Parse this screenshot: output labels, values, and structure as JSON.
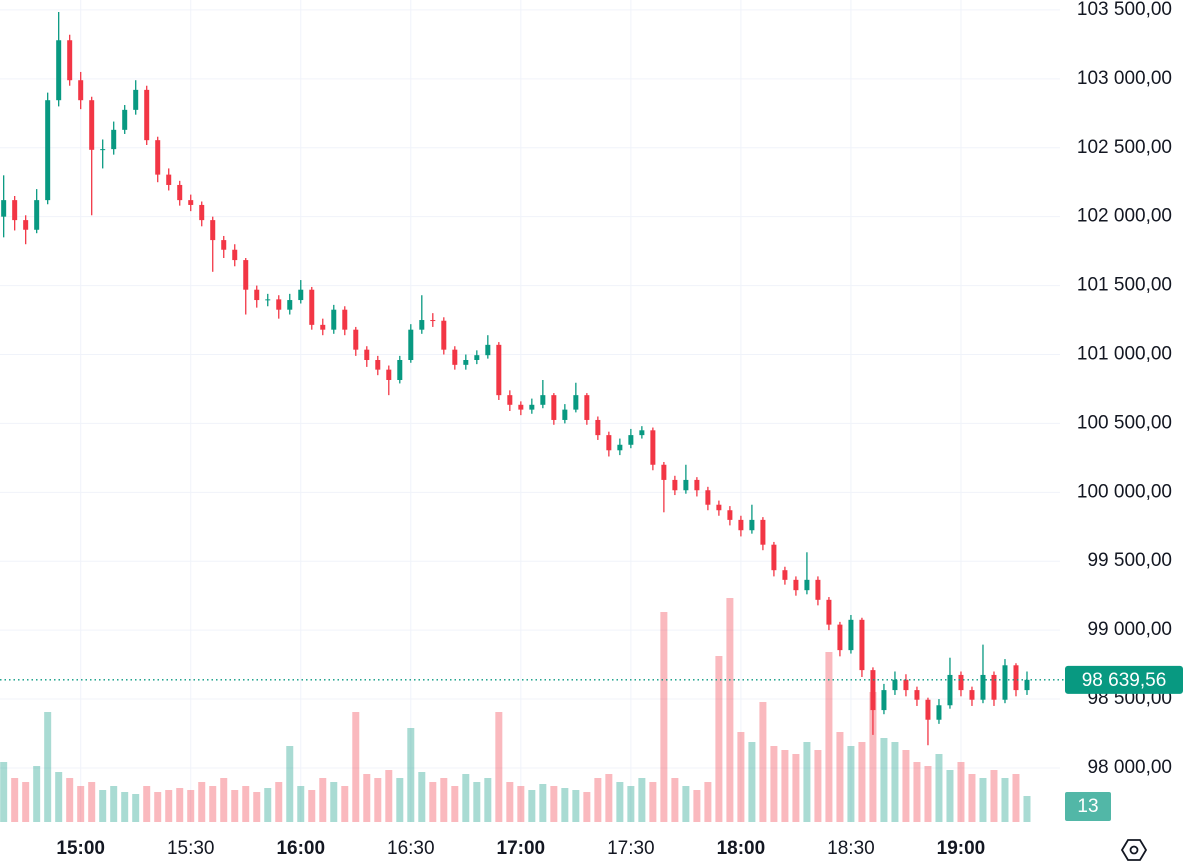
{
  "chart_data": {
    "type": "candlestick",
    "x": [
      "14:39",
      "14:42",
      "14:45",
      "14:48",
      "14:51",
      "14:54",
      "14:57",
      "15:00",
      "15:03",
      "15:06",
      "15:09",
      "15:12",
      "15:15",
      "15:18",
      "15:21",
      "15:24",
      "15:27",
      "15:30",
      "15:33",
      "15:36",
      "15:39",
      "15:42",
      "15:45",
      "15:48",
      "15:51",
      "15:54",
      "15:57",
      "16:00",
      "16:03",
      "16:06",
      "16:09",
      "16:12",
      "16:15",
      "16:18",
      "16:21",
      "16:24",
      "16:27",
      "16:30",
      "16:33",
      "16:36",
      "16:39",
      "16:42",
      "16:45",
      "16:48",
      "16:51",
      "16:54",
      "16:57",
      "17:00",
      "17:03",
      "17:06",
      "17:09",
      "17:12",
      "17:15",
      "17:18",
      "17:21",
      "17:24",
      "17:27",
      "17:30",
      "17:33",
      "17:36",
      "17:39",
      "17:42",
      "17:45",
      "17:48",
      "17:51",
      "17:54",
      "17:57",
      "18:00",
      "18:03",
      "18:06",
      "18:09",
      "18:12",
      "18:15",
      "18:18",
      "18:21",
      "18:24",
      "18:27",
      "18:30",
      "18:33",
      "18:36",
      "18:39",
      "18:42",
      "18:45",
      "18:48",
      "18:51",
      "18:54",
      "18:57",
      "19:00",
      "19:03",
      "19:06",
      "19:09",
      "19:12",
      "19:15",
      "19:18"
    ],
    "open": [
      102000,
      102120,
      101975,
      101905,
      102120,
      102845,
      103280,
      102990,
      102845,
      102485,
      102490,
      102630,
      102775,
      102920,
      102555,
      102305,
      102230,
      102120,
      102085,
      101975,
      101830,
      101760,
      101685,
      101470,
      101395,
      101400,
      101325,
      101395,
      101470,
      101215,
      101180,
      101325,
      101180,
      101035,
      100960,
      100890,
      100815,
      100960,
      101180,
      101250,
      101245,
      101035,
      100925,
      100960,
      100995,
      101070,
      100705,
      100635,
      100600,
      100635,
      100705,
      100525,
      100600,
      100705,
      100525,
      100415,
      100305,
      100345,
      100415,
      100450,
      100200,
      100090,
      100015,
      100090,
      100015,
      99910,
      99870,
      99800,
      99725,
      99800,
      99620,
      99435,
      99365,
      99290,
      99365,
      99220,
      99040,
      98855,
      99075,
      98710,
      98420,
      98565,
      98640,
      98565,
      98495,
      98350,
      98455,
      98675,
      98565,
      98495,
      98675,
      98495,
      98745,
      98565
    ],
    "high": [
      102300,
      102150,
      102010,
      102200,
      102900,
      103485,
      103320,
      103050,
      102870,
      102560,
      102690,
      102810,
      102990,
      102950,
      102580,
      102350,
      102260,
      102160,
      102110,
      102000,
      101860,
      101800,
      101700,
      101500,
      101440,
      101430,
      101440,
      101540,
      101490,
      101260,
      101360,
      101350,
      101200,
      101060,
      100990,
      100920,
      100990,
      101220,
      101430,
      101300,
      101270,
      101060,
      101000,
      101030,
      101140,
      101090,
      100740,
      100660,
      100680,
      100815,
      100720,
      100640,
      100795,
      100720,
      100550,
      100440,
      100390,
      100460,
      100480,
      100470,
      100220,
      100120,
      100200,
      100110,
      100040,
      99940,
      99900,
      99830,
      99910,
      99820,
      99640,
      99460,
      99390,
      99565,
      99390,
      99240,
      99060,
      99110,
      99090,
      98730,
      98610,
      98700,
      98680,
      98590,
      98510,
      98500,
      98800,
      98700,
      98590,
      98895,
      98700,
      98790,
      98760,
      98700
    ],
    "low": [
      101850,
      101900,
      101800,
      101880,
      102090,
      102800,
      102950,
      102780,
      102010,
      102350,
      102450,
      102600,
      102740,
      102520,
      102250,
      102190,
      102080,
      102040,
      101930,
      101600,
      101700,
      101640,
      101290,
      101340,
      101350,
      101260,
      101290,
      101370,
      101180,
      101140,
      101150,
      101140,
      100990,
      100910,
      100850,
      100705,
      100790,
      100940,
      101150,
      101200,
      101000,
      100890,
      100890,
      100930,
      100970,
      100670,
      100590,
      100560,
      100570,
      100610,
      100490,
      100500,
      100580,
      100490,
      100380,
      100260,
      100270,
      100320,
      100390,
      100160,
      99855,
      99980,
      99990,
      99970,
      99870,
      99830,
      99760,
      99680,
      99700,
      99580,
      99390,
      99330,
      99250,
      99260,
      99180,
      99000,
      98810,
      98830,
      98660,
      98240,
      98390,
      98530,
      98520,
      98450,
      98165,
      98320,
      98430,
      98520,
      98450,
      98470,
      98450,
      98470,
      98520,
      98530
    ],
    "close": [
      102120,
      101975,
      101905,
      102120,
      102845,
      103280,
      102990,
      102845,
      102485,
      102490,
      102630,
      102775,
      102920,
      102555,
      102305,
      102230,
      102120,
      102085,
      101975,
      101830,
      101760,
      101685,
      101470,
      101395,
      101400,
      101325,
      101395,
      101470,
      101215,
      101180,
      101325,
      101180,
      101035,
      100960,
      100890,
      100815,
      100960,
      101180,
      101250,
      101245,
      101035,
      100925,
      100960,
      100995,
      101070,
      100705,
      100635,
      100600,
      100635,
      100705,
      100525,
      100600,
      100705,
      100525,
      100415,
      100305,
      100345,
      100415,
      100450,
      100200,
      100090,
      100015,
      100090,
      100015,
      99910,
      99870,
      99800,
      99725,
      99800,
      99620,
      99435,
      99365,
      99290,
      99365,
      99220,
      99040,
      98855,
      99075,
      98710,
      98420,
      98565,
      98640,
      98565,
      98495,
      98350,
      98455,
      98675,
      98565,
      98495,
      98675,
      98495,
      98745,
      98565,
      98639.56
    ],
    "volume": [
      30,
      22,
      20,
      28,
      55,
      25,
      22,
      18,
      20,
      16,
      18,
      15,
      14,
      18,
      15,
      16,
      17,
      16,
      20,
      18,
      22,
      16,
      18,
      15,
      17,
      20,
      38,
      18,
      16,
      22,
      20,
      18,
      55,
      24,
      22,
      26,
      22,
      47,
      25,
      20,
      22,
      18,
      24,
      20,
      22,
      55,
      20,
      18,
      16,
      19,
      18,
      17,
      16,
      15,
      22,
      24,
      20,
      18,
      22,
      20,
      105,
      22,
      18,
      16,
      20,
      83,
      112,
      45,
      40,
      60,
      38,
      36,
      34,
      40,
      36,
      85,
      45,
      38,
      40,
      65,
      42,
      40,
      36,
      30,
      28,
      34,
      26,
      30,
      24,
      22,
      26,
      22,
      24,
      13
    ],
    "xlim": [
      "14:38",
      "19:27"
    ],
    "xticks": [
      "15:00",
      "15:30",
      "16:00",
      "16:30",
      "17:00",
      "17:30",
      "18:00",
      "18:30",
      "19:00"
    ],
    "ylim": [
      97608,
      103572
    ],
    "yticks": [
      {
        "value": 98000,
        "label": "98 000,00"
      },
      {
        "value": 98500,
        "label": "98 500,00"
      },
      {
        "value": 99000,
        "label": "99 000,00"
      },
      {
        "value": 99500,
        "label": "99 500,00"
      },
      {
        "value": 100000,
        "label": "100 000,00"
      },
      {
        "value": 100500,
        "label": "100 500,00"
      },
      {
        "value": 101000,
        "label": "101 000,00"
      },
      {
        "value": 101500,
        "label": "101 500,00"
      },
      {
        "value": 102000,
        "label": "102 000,00"
      },
      {
        "value": 102500,
        "label": "102 500,00"
      },
      {
        "value": 103000,
        "label": "103 000,00"
      },
      {
        "value": 103500,
        "label": "103 500,00"
      }
    ],
    "volume_lim": [
      0,
      120
    ],
    "last_price": {
      "value": 98639.56,
      "label": "98 639,56"
    },
    "up_color": "#089981",
    "down_color": "#f23645",
    "grid": true
  }
}
